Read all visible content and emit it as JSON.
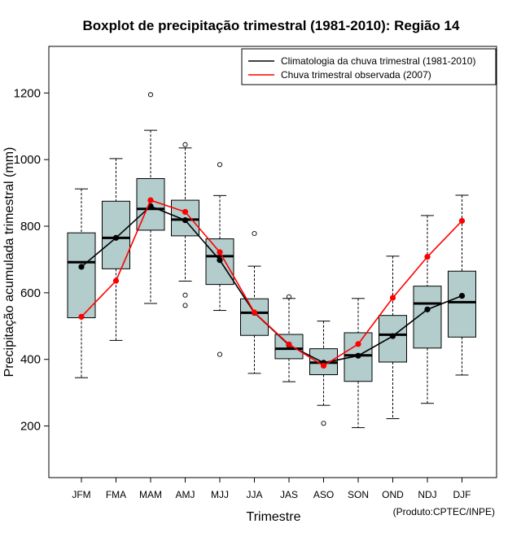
{
  "chart_data": {
    "type": "boxplot",
    "title": "Boxplot de precipitação trimestral (1981-2010): Região 14",
    "xlabel": "Trimestre",
    "ylabel": "Precipitação acumulada trimestral (mm)",
    "ylim": [
      45,
      1340
    ],
    "yticks": [
      200,
      400,
      600,
      800,
      1000,
      1200
    ],
    "categories": [
      "JFM",
      "FMA",
      "MAM",
      "AMJ",
      "MJJ",
      "JJA",
      "JAS",
      "ASO",
      "SON",
      "OND",
      "NDJ",
      "DJF"
    ],
    "boxes": [
      {
        "whisker_low": 345,
        "q1": 525,
        "median": 692,
        "q3": 780,
        "whisker_high": 912,
        "outliers": []
      },
      {
        "whisker_low": 457,
        "q1": 672,
        "median": 765,
        "q3": 875,
        "whisker_high": 1003,
        "outliers": []
      },
      {
        "whisker_low": 568,
        "q1": 788,
        "median": 852,
        "q3": 943,
        "whisker_high": 1088,
        "outliers": [
          1195
        ]
      },
      {
        "whisker_low": 635,
        "q1": 771,
        "median": 820,
        "q3": 878,
        "whisker_high": 1035,
        "outliers": [
          1045,
          593,
          562
        ]
      },
      {
        "whisker_low": 547,
        "q1": 625,
        "median": 710,
        "q3": 762,
        "whisker_high": 892,
        "outliers": [
          985,
          415
        ]
      },
      {
        "whisker_low": 358,
        "q1": 472,
        "median": 540,
        "q3": 582,
        "whisker_high": 680,
        "outliers": [
          778
        ]
      },
      {
        "whisker_low": 333,
        "q1": 402,
        "median": 432,
        "q3": 475,
        "whisker_high": 583,
        "outliers": [
          588
        ]
      },
      {
        "whisker_low": 262,
        "q1": 354,
        "median": 390,
        "q3": 432,
        "whisker_high": 515,
        "outliers": [
          208
        ]
      },
      {
        "whisker_low": 195,
        "q1": 334,
        "median": 412,
        "q3": 480,
        "whisker_high": 583,
        "outliers": []
      },
      {
        "whisker_low": 222,
        "q1": 392,
        "median": 474,
        "q3": 532,
        "whisker_high": 710,
        "outliers": []
      },
      {
        "whisker_low": 268,
        "q1": 434,
        "median": 568,
        "q3": 620,
        "whisker_high": 832,
        "outliers": []
      },
      {
        "whisker_low": 353,
        "q1": 467,
        "median": 572,
        "q3": 665,
        "whisker_high": 893,
        "outliers": []
      }
    ],
    "series": [
      {
        "name": "Climatologia da chuva trimestral (1981-2010)",
        "color": "#000000",
        "values": [
          678,
          765,
          860,
          818,
          698,
          540,
          443,
          390,
          411,
          470,
          550,
          591
        ]
      },
      {
        "name": "Chuva trimestral observada (2007)",
        "color": "#ff0000",
        "values": [
          528,
          636,
          878,
          843,
          722,
          541,
          445,
          381,
          446,
          585,
          708,
          816
        ]
      }
    ],
    "legend_position": "top-right",
    "box_fill": "#b3cccc",
    "credit": "(Produto:CPTEC/INPE)"
  }
}
